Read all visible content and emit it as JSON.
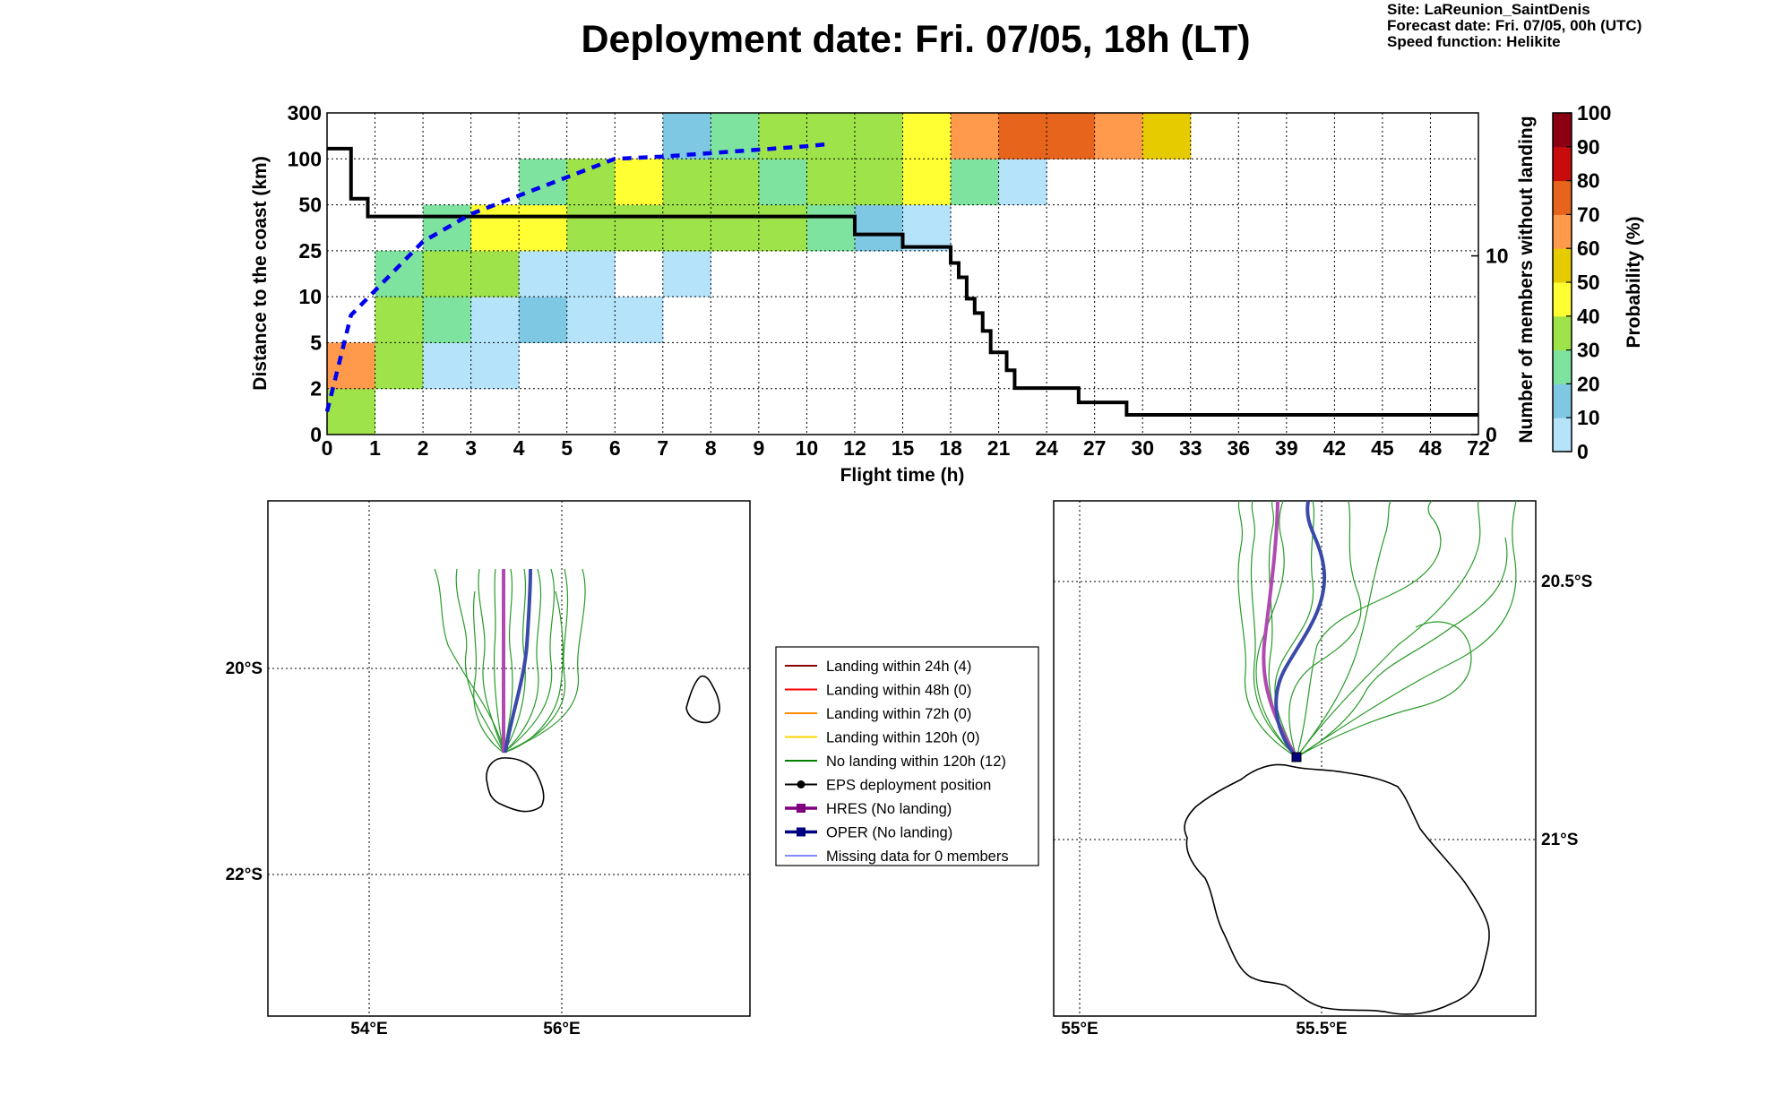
{
  "title": "Deployment date: Fri. 07/05, 18h (LT)",
  "info": {
    "site": "Site: LaReunion_SaintDenis",
    "forecast": "Forecast date: Fri. 07/05, 00h (UTC)",
    "speed": "Speed function: Helikite"
  },
  "chart_data": [
    {
      "type": "heatmap",
      "title": "",
      "xlabel": "Flight time (h)",
      "ylabel": "Distance to the coast (km)",
      "ylabel_right": "Number of members without landing",
      "colorbar_label": "Probability (%)",
      "x_ticks": [
        "0",
        "1",
        "2",
        "3",
        "4",
        "5",
        "6",
        "7",
        "8",
        "9",
        "10",
        "12",
        "15",
        "18",
        "21",
        "24",
        "27",
        "30",
        "33",
        "36",
        "39",
        "42",
        "45",
        "48",
        "72"
      ],
      "y_ticks": [
        "0",
        "2",
        "5",
        "10",
        "25",
        "50",
        "100",
        "300"
      ],
      "right_ticks": [
        {
          "label": "0",
          "value": 0
        },
        {
          "label": "10",
          "value": 10
        }
      ],
      "right_ylim": [
        0,
        18
      ],
      "colorbar_ticks": [
        "0",
        "10",
        "20",
        "30",
        "40",
        "50",
        "60",
        "70",
        "80",
        "90",
        "100"
      ],
      "colorbar_colors": [
        "#b5e3fa",
        "#7ec8e3",
        "#7fe3a0",
        "#9ee349",
        "#ffff33",
        "#e6cb00",
        "#ff9a4d",
        "#e6641c",
        "#c80c0c",
        "#8c0014"
      ],
      "cells": [
        {
          "x": 0,
          "y": 0,
          "p": 30
        },
        {
          "x": 0,
          "y": 1,
          "p": 60
        },
        {
          "x": 1,
          "y": 1,
          "p": 30
        },
        {
          "x": 1,
          "y": 2,
          "p": 30
        },
        {
          "x": 1,
          "y": 3,
          "p": 20
        },
        {
          "x": 2,
          "y": 1,
          "p": 0
        },
        {
          "x": 3,
          "y": 1,
          "p": 0
        },
        {
          "x": 2,
          "y": 2,
          "p": 20
        },
        {
          "x": 3,
          "y": 2,
          "p": 0
        },
        {
          "x": 4,
          "y": 2,
          "p": 10
        },
        {
          "x": 5,
          "y": 2,
          "p": 0
        },
        {
          "x": 6,
          "y": 2,
          "p": 0
        },
        {
          "x": 2,
          "y": 3,
          "p": 30
        },
        {
          "x": 3,
          "y": 3,
          "p": 30
        },
        {
          "x": 4,
          "y": 3,
          "p": 0
        },
        {
          "x": 5,
          "y": 3,
          "p": 0
        },
        {
          "x": 7,
          "y": 3,
          "p": 0
        },
        {
          "x": 2,
          "y": 4,
          "p": 20
        },
        {
          "x": 3,
          "y": 4,
          "p": 40
        },
        {
          "x": 4,
          "y": 4,
          "p": 40
        },
        {
          "x": 5,
          "y": 4,
          "p": 30
        },
        {
          "x": 6,
          "y": 4,
          "p": 30
        },
        {
          "x": 7,
          "y": 4,
          "p": 30
        },
        {
          "x": 8,
          "y": 4,
          "p": 30
        },
        {
          "x": 9,
          "y": 4,
          "p": 30
        },
        {
          "x": 10,
          "y": 4,
          "p": 20
        },
        {
          "x": 11,
          "y": 4,
          "p": 10
        },
        {
          "x": 12,
          "y": 4,
          "p": 0
        },
        {
          "x": 4,
          "y": 5,
          "p": 20
        },
        {
          "x": 5,
          "y": 5,
          "p": 30
        },
        {
          "x": 6,
          "y": 5,
          "p": 40
        },
        {
          "x": 7,
          "y": 5,
          "p": 30
        },
        {
          "x": 8,
          "y": 5,
          "p": 30
        },
        {
          "x": 9,
          "y": 5,
          "p": 20
        },
        {
          "x": 10,
          "y": 5,
          "p": 30
        },
        {
          "x": 11,
          "y": 5,
          "p": 30
        },
        {
          "x": 12,
          "y": 5,
          "p": 40
        },
        {
          "x": 13,
          "y": 5,
          "p": 20
        },
        {
          "x": 14,
          "y": 5,
          "p": 0
        },
        {
          "x": 7,
          "y": 6,
          "p": 10
        },
        {
          "x": 8,
          "y": 6,
          "p": 20
        },
        {
          "x": 9,
          "y": 6,
          "p": 30
        },
        {
          "x": 10,
          "y": 6,
          "p": 30
        },
        {
          "x": 11,
          "y": 6,
          "p": 30
        },
        {
          "x": 12,
          "y": 6,
          "p": 40
        },
        {
          "x": 13,
          "y": 6,
          "p": 60
        },
        {
          "x": 14,
          "y": 6,
          "p": 70
        },
        {
          "x": 15,
          "y": 6,
          "p": 70
        },
        {
          "x": 16,
          "y": 6,
          "p": 60
        },
        {
          "x": 17,
          "y": 6,
          "p": 50
        }
      ],
      "members_without_landing_step": [
        {
          "t": 0,
          "n": 16
        },
        {
          "t": 0.5,
          "n": 13.2
        },
        {
          "t": 0.85,
          "n": 12.2
        },
        {
          "t": 12,
          "n": 11.2
        },
        {
          "t": 15,
          "n": 10.5
        },
        {
          "t": 18,
          "n": 9.6
        },
        {
          "t": 18.5,
          "n": 8.8
        },
        {
          "t": 19,
          "n": 7.6
        },
        {
          "t": 19.5,
          "n": 6.8
        },
        {
          "t": 20,
          "n": 5.8
        },
        {
          "t": 20.5,
          "n": 4.6
        },
        {
          "t": 21.5,
          "n": 3.6
        },
        {
          "t": 22,
          "n": 2.6
        },
        {
          "t": 26,
          "n": 1.8
        },
        {
          "t": 29,
          "n": 1.1
        },
        {
          "t": 72,
          "n": 1.1
        }
      ],
      "median_distance_dashed": [
        {
          "t": 0,
          "d": 1
        },
        {
          "t": 0.2,
          "d": 3
        },
        {
          "t": 0.5,
          "d": 8
        },
        {
          "t": 1,
          "d": 12
        },
        {
          "t": 1.5,
          "d": 20
        },
        {
          "t": 2,
          "d": 30
        },
        {
          "t": 3,
          "d": 45
        },
        {
          "t": 4,
          "d": 60
        },
        {
          "t": 5,
          "d": 80
        },
        {
          "t": 6,
          "d": 100
        },
        {
          "t": 7,
          "d": 110
        },
        {
          "t": 8,
          "d": 125
        },
        {
          "t": 9,
          "d": 140
        },
        {
          "t": 10,
          "d": 155
        },
        {
          "t": 11,
          "d": 165
        }
      ]
    },
    {
      "type": "map",
      "x_ticks": [
        "54°E",
        "56°E"
      ],
      "y_ticks": [
        "20°S",
        "22°S"
      ],
      "lon_range": [
        53,
        58
      ],
      "lat_range": [
        -23.5,
        -18.5
      ]
    },
    {
      "type": "map",
      "x_ticks": [
        "55°E",
        "55.5°E"
      ],
      "y_ticks": [
        "20.5°S",
        "21°S"
      ],
      "lon_range": [
        54.95,
        55.9
      ],
      "lat_range": [
        -21.4,
        -20.35
      ]
    }
  ],
  "legend": [
    {
      "label": "Landing within 24h (4)",
      "color": "#8b0000",
      "marker": "line"
    },
    {
      "label": "Landing within 48h (0)",
      "color": "#ff0000",
      "marker": "line"
    },
    {
      "label": "Landing within 72h (0)",
      "color": "#ff8c00",
      "marker": "line"
    },
    {
      "label": "Landing within 120h (0)",
      "color": "#ffd700",
      "marker": "line"
    },
    {
      "label": "No landing within 120h (12)",
      "color": "#008000",
      "marker": "line"
    },
    {
      "label": "EPS deployment position",
      "color": "#000000",
      "marker": "circle"
    },
    {
      "label": "HRES (No landing)",
      "color": "#800080",
      "marker": "square"
    },
    {
      "label": "OPER (No landing)",
      "color": "#000080",
      "marker": "square"
    },
    {
      "label": "Missing data for 0 members",
      "color": "#4040ff",
      "marker": "thin"
    }
  ]
}
